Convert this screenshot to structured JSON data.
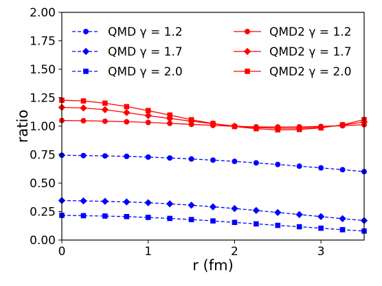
{
  "chart_data": {
    "type": "line",
    "xlabel": "r (fm)",
    "ylabel": "ratio",
    "xlim": [
      0,
      3.5
    ],
    "ylim": [
      0,
      2.0
    ],
    "x_ticks": [
      0,
      1,
      2,
      3
    ],
    "x_tick_labels": [
      "0",
      "1",
      "2",
      "3"
    ],
    "y_ticks": [
      0,
      0.25,
      0.5,
      0.75,
      1.0,
      1.25,
      1.5,
      1.75,
      2.0
    ],
    "y_tick_labels": [
      "0.00",
      "0.25",
      "0.50",
      "0.75",
      "1.00",
      "1.25",
      "1.50",
      "1.75",
      "2.00"
    ],
    "grid": false,
    "legend": {
      "placement": "top",
      "columns": 2
    },
    "x": [
      0,
      0.25,
      0.5,
      0.75,
      1.0,
      1.25,
      1.5,
      1.75,
      2.0,
      2.25,
      2.5,
      2.75,
      3.0,
      3.25,
      3.5
    ],
    "series": [
      {
        "name": "QMD γ = 1.2",
        "color": "#0000ff",
        "marker": "circle",
        "linestyle": "dashed",
        "values": [
          0.745,
          0.742,
          0.739,
          0.735,
          0.729,
          0.721,
          0.712,
          0.702,
          0.691,
          0.678,
          0.664,
          0.649,
          0.634,
          0.618,
          0.601
        ]
      },
      {
        "name": "QMD γ = 1.7",
        "color": "#0000ff",
        "marker": "diamond",
        "linestyle": "dashed",
        "values": [
          0.347,
          0.344,
          0.34,
          0.335,
          0.328,
          0.318,
          0.306,
          0.292,
          0.277,
          0.26,
          0.242,
          0.224,
          0.206,
          0.188,
          0.171
        ]
      },
      {
        "name": "QMD γ = 2.0",
        "color": "#0000ff",
        "marker": "square",
        "linestyle": "dashed",
        "values": [
          0.217,
          0.214,
          0.211,
          0.206,
          0.199,
          0.19,
          0.18,
          0.168,
          0.155,
          0.142,
          0.129,
          0.117,
          0.104,
          0.091,
          0.079
        ]
      },
      {
        "name": "QMD2 γ = 1.2",
        "color": "#ff0000",
        "marker": "circle",
        "linestyle": "solid",
        "values": [
          1.05,
          1.048,
          1.044,
          1.039,
          1.033,
          1.025,
          1.016,
          1.007,
          0.999,
          0.994,
          0.993,
          0.994,
          0.998,
          1.004,
          1.013
        ]
      },
      {
        "name": "QMD2 γ = 1.7",
        "color": "#ff0000",
        "marker": "diamond",
        "linestyle": "solid",
        "values": [
          1.165,
          1.16,
          1.145,
          1.12,
          1.093,
          1.068,
          1.044,
          1.022,
          1.001,
          0.988,
          0.982,
          0.983,
          0.991,
          1.009,
          1.037
        ]
      },
      {
        "name": "QMD2 γ = 2.0",
        "color": "#ff0000",
        "marker": "square",
        "linestyle": "solid",
        "values": [
          1.228,
          1.222,
          1.202,
          1.172,
          1.137,
          1.098,
          1.057,
          1.023,
          0.997,
          0.978,
          0.968,
          0.971,
          0.985,
          1.012,
          1.058
        ]
      }
    ]
  }
}
